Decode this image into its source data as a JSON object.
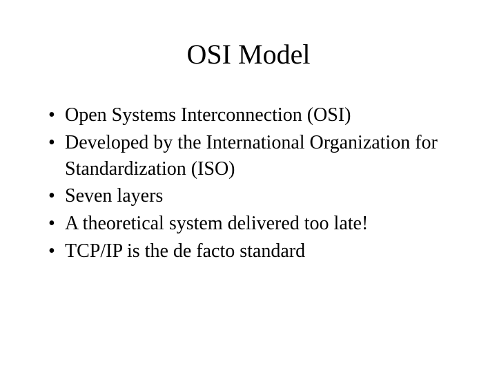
{
  "slide": {
    "title": "OSI Model",
    "bullets": [
      "Open Systems Interconnection (OSI)",
      "Developed by the International Organization for Standardization (ISO)",
      "Seven layers",
      "A theoretical system delivered too late!",
      "TCP/IP is the de facto standard"
    ],
    "background_color": "#ffffff",
    "text_color": "#000000",
    "title_fontsize": 40,
    "body_fontsize": 28,
    "font_family": "Times New Roman"
  }
}
